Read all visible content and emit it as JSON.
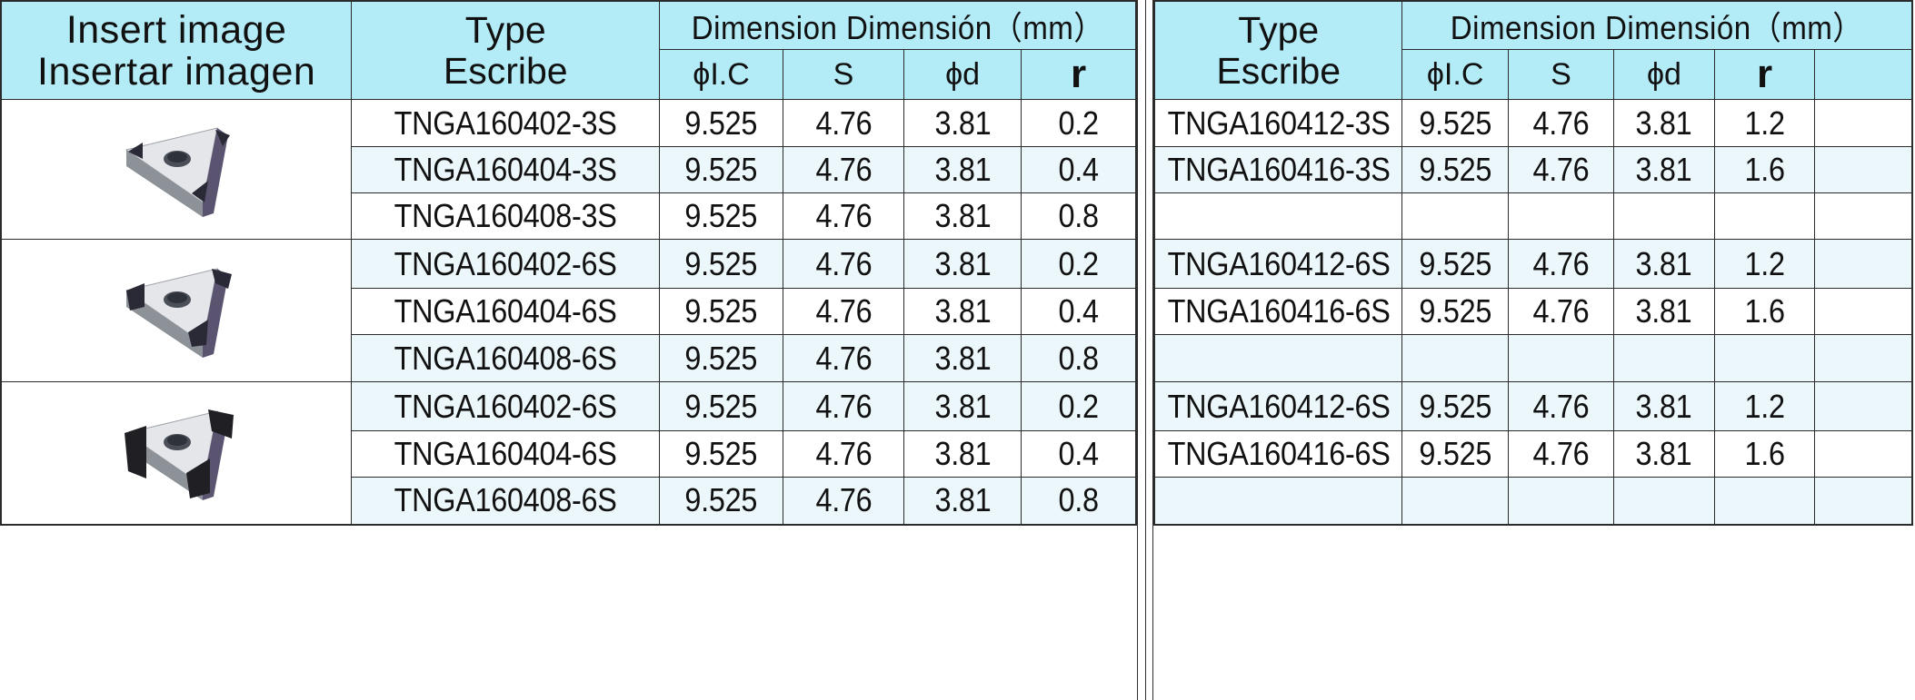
{
  "headers": {
    "insert_image_en": "Insert image",
    "insert_image_es": "Insertar imagen",
    "type_en": "Type",
    "type_es": "Escribe",
    "dimension": "Dimension Dimensión（mm）",
    "col_ic": "ϕI.C",
    "col_s": "S",
    "col_d": "ϕd",
    "col_r": "r"
  },
  "left_rows": [
    {
      "type": "TNGA160402-3S",
      "ic": "9.525",
      "s": "4.76",
      "d": "3.81",
      "r": "0.2"
    },
    {
      "type": "TNGA160404-3S",
      "ic": "9.525",
      "s": "4.76",
      "d": "3.81",
      "r": "0.4"
    },
    {
      "type": "TNGA160408-3S",
      "ic": "9.525",
      "s": "4.76",
      "d": "3.81",
      "r": "0.8"
    },
    {
      "type": "TNGA160402-6S",
      "ic": "9.525",
      "s": "4.76",
      "d": "3.81",
      "r": "0.2"
    },
    {
      "type": "TNGA160404-6S",
      "ic": "9.525",
      "s": "4.76",
      "d": "3.81",
      "r": "0.4"
    },
    {
      "type": "TNGA160408-6S",
      "ic": "9.525",
      "s": "4.76",
      "d": "3.81",
      "r": "0.8"
    },
    {
      "type": "TNGA160402-6S",
      "ic": "9.525",
      "s": "4.76",
      "d": "3.81",
      "r": "0.2"
    },
    {
      "type": "TNGA160404-6S",
      "ic": "9.525",
      "s": "4.76",
      "d": "3.81",
      "r": "0.4"
    },
    {
      "type": "TNGA160408-6S",
      "ic": "9.525",
      "s": "4.76",
      "d": "3.81",
      "r": "0.8"
    }
  ],
  "right_rows": [
    {
      "type": "TNGA160412-3S",
      "ic": "9.525",
      "s": "4.76",
      "d": "3.81",
      "r": "1.2"
    },
    {
      "type": "TNGA160416-3S",
      "ic": "9.525",
      "s": "4.76",
      "d": "3.81",
      "r": "1.6"
    },
    {
      "type": "",
      "ic": "",
      "s": "",
      "d": "",
      "r": ""
    },
    {
      "type": "TNGA160412-6S",
      "ic": "9.525",
      "s": "4.76",
      "d": "3.81",
      "r": "1.2"
    },
    {
      "type": "TNGA160416-6S",
      "ic": "9.525",
      "s": "4.76",
      "d": "3.81",
      "r": "1.6"
    },
    {
      "type": "",
      "ic": "",
      "s": "",
      "d": "",
      "r": ""
    },
    {
      "type": "TNGA160412-6S",
      "ic": "9.525",
      "s": "4.76",
      "d": "3.81",
      "r": "1.2"
    },
    {
      "type": "TNGA160416-6S",
      "ic": "9.525",
      "s": "4.76",
      "d": "3.81",
      "r": "1.6"
    },
    {
      "type": "",
      "ic": "",
      "s": "",
      "d": "",
      "r": ""
    }
  ],
  "insert_images": [
    {
      "icon": "triangle-insert-3-corner-tips-icon",
      "tip_color": "#2a2a36"
    },
    {
      "icon": "triangle-insert-6-edge-tips-icon",
      "tip_color": "#2a2a36"
    },
    {
      "icon": "triangle-insert-full-corner-icon",
      "tip_color": "#1f1f24"
    }
  ],
  "colors": {
    "header_bg": "#b3ebf7",
    "shade_bg": "#ecf7fb",
    "border": "#2b2b2b"
  }
}
